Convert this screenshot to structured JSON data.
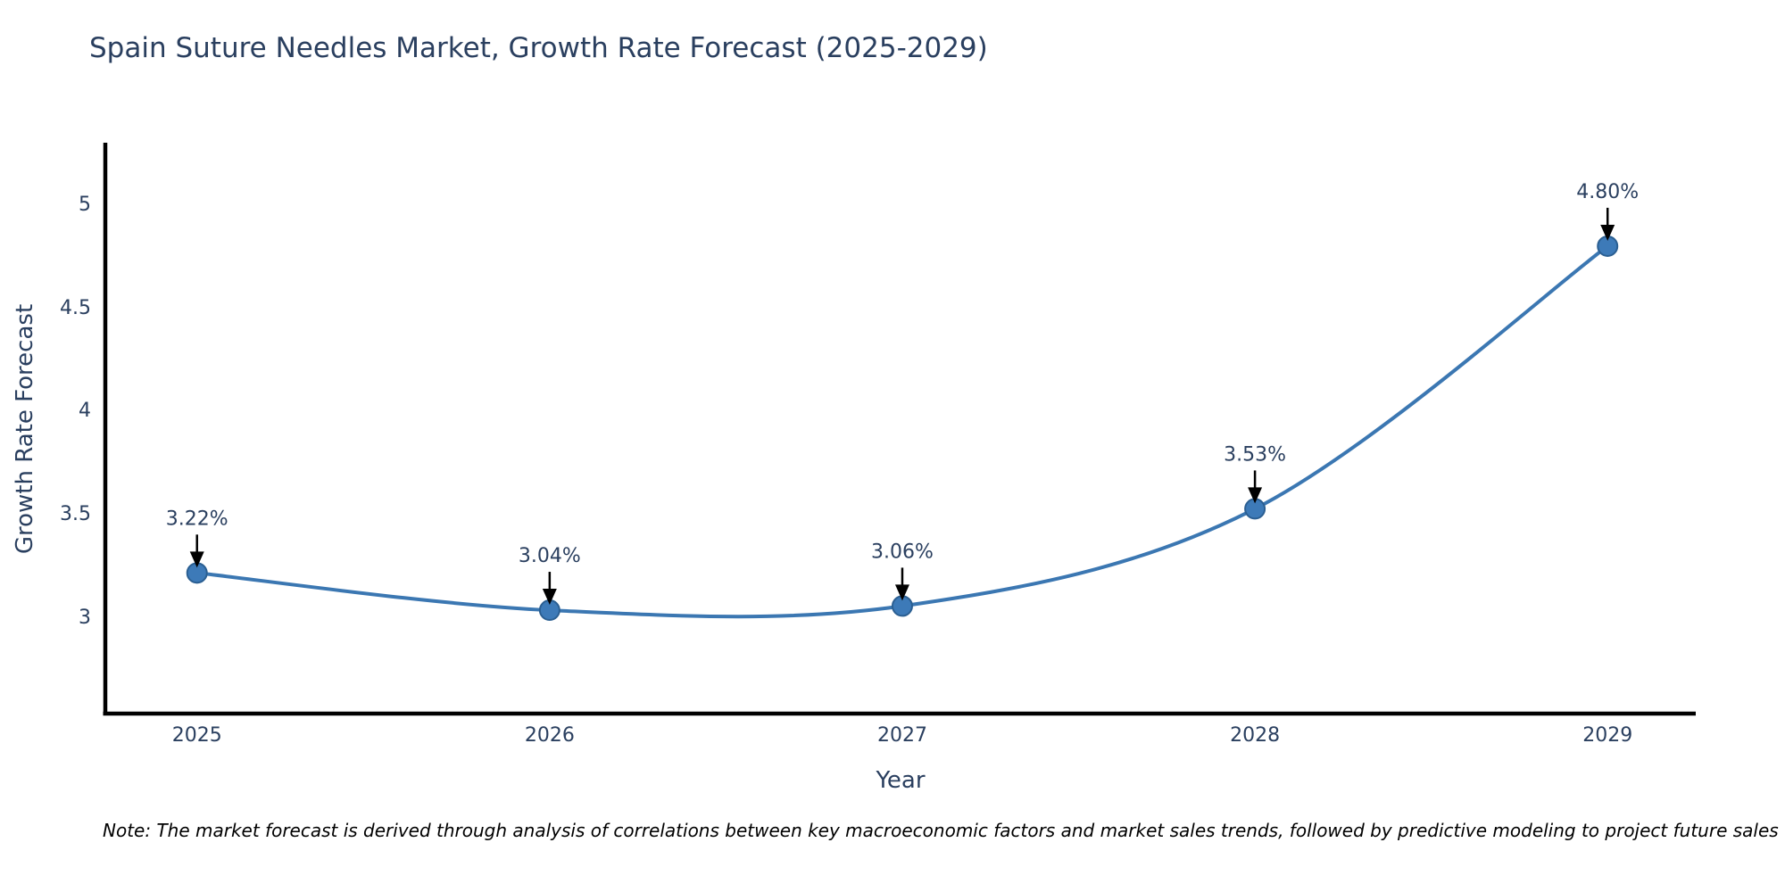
{
  "title": "Spain Suture Needles Market, Growth Rate Forecast (2025-2029)",
  "footnote": "Note: The market forecast is derived through analysis of correlations between key macroeconomic factors and market sales trends, followed by predictive modeling to project future sales",
  "chart_data": {
    "type": "line",
    "title": "Spain Suture Needles Market, Growth Rate Forecast (2025-2029)",
    "xlabel": "Year",
    "ylabel": "Growth Rate Forecast",
    "x": [
      2025,
      2026,
      2027,
      2028,
      2029
    ],
    "values": [
      3.22,
      3.04,
      3.06,
      3.53,
      4.8
    ],
    "point_labels": [
      "3.22%",
      "3.04%",
      "3.06%",
      "3.53%",
      "4.80%"
    ],
    "xtick_labels": [
      "2025",
      "2026",
      "2027",
      "2028",
      "2029"
    ],
    "ytick_values": [
      3,
      3.5,
      4,
      4.5,
      5
    ],
    "ytick_labels": [
      "3",
      "3.5",
      "4",
      "4.5",
      "5"
    ],
    "xlim": [
      2024.74,
      2029.25
    ],
    "ylim": [
      2.54,
      5.3
    ],
    "grid": false,
    "legend": "none",
    "line_shape": "spline",
    "annotation_arrows": true
  },
  "colors": {
    "line": "#3b77b2",
    "marker_fill": "#3d7ab8",
    "marker_edge": "#2b5f92",
    "axis_line": "#000000",
    "text": "#2a3f5f",
    "annotation_text": "#2a3f5f",
    "arrow": "#000000",
    "note_text": "#000000",
    "background": "#ffffff"
  }
}
